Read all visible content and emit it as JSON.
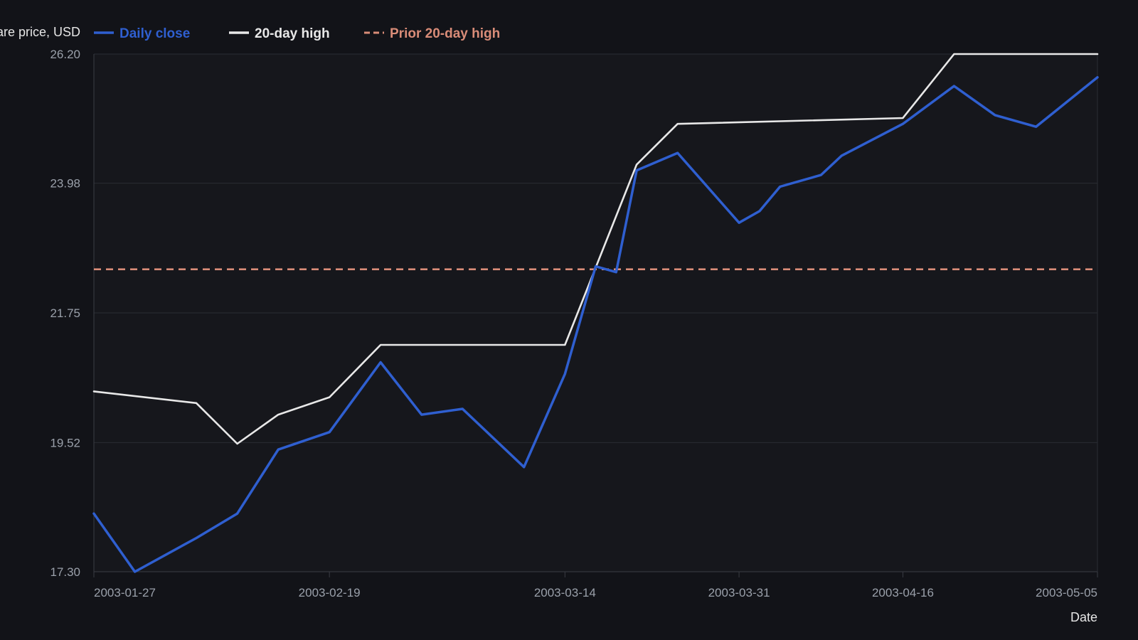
{
  "chart_data": {
    "type": "line",
    "title": "",
    "ylabel": "Share price, USD",
    "xlabel": "Date",
    "ylim": [
      17.3,
      26.2
    ],
    "xlim": [
      "2003-01-27",
      "2003-05-05"
    ],
    "y_ticks": [
      "17.30",
      "19.52",
      "21.75",
      "23.98",
      "26.20"
    ],
    "x_ticks": [
      "2003-01-27",
      "2003-02-19",
      "2003-03-14",
      "2003-03-31",
      "2003-04-16",
      "2003-05-05"
    ],
    "grid": true,
    "legend_position": "top-left",
    "series": [
      {
        "name": "Daily close",
        "style": "solid",
        "color": "#2f5fd0",
        "points": [
          [
            "2003-01-27",
            18.3
          ],
          [
            "2003-01-31",
            17.3
          ],
          [
            "2003-02-06",
            17.88
          ],
          [
            "2003-02-10",
            18.3
          ],
          [
            "2003-02-14",
            19.4
          ],
          [
            "2003-02-19",
            19.7
          ],
          [
            "2003-02-24",
            20.9
          ],
          [
            "2003-02-28",
            20.0
          ],
          [
            "2003-03-04",
            20.1
          ],
          [
            "2003-03-10",
            19.1
          ],
          [
            "2003-03-14",
            20.7
          ],
          [
            "2003-03-17",
            22.55
          ],
          [
            "2003-03-19",
            22.45
          ],
          [
            "2003-03-21",
            24.2
          ],
          [
            "2003-03-25",
            24.5
          ],
          [
            "2003-03-31",
            23.3
          ],
          [
            "2003-04-02",
            23.5
          ],
          [
            "2003-04-04",
            23.92
          ],
          [
            "2003-04-08",
            24.12
          ],
          [
            "2003-04-10",
            24.45
          ],
          [
            "2003-04-16",
            25.0
          ],
          [
            "2003-04-21",
            25.65
          ],
          [
            "2003-04-25",
            25.15
          ],
          [
            "2003-04-29",
            24.95
          ],
          [
            "2003-05-05",
            25.8
          ]
        ]
      },
      {
        "name": "20-day high",
        "style": "solid",
        "color": "#e8e8e8",
        "points": [
          [
            "2003-01-27",
            20.4
          ],
          [
            "2003-02-06",
            20.2
          ],
          [
            "2003-02-10",
            19.5
          ],
          [
            "2003-02-14",
            20.0
          ],
          [
            "2003-02-19",
            20.3
          ],
          [
            "2003-02-24",
            21.2
          ],
          [
            "2003-03-14",
            21.2
          ],
          [
            "2003-03-21",
            24.3
          ],
          [
            "2003-03-25",
            25.0
          ],
          [
            "2003-04-16",
            25.1
          ],
          [
            "2003-04-21",
            26.2
          ],
          [
            "2003-05-05",
            26.2
          ]
        ]
      },
      {
        "name": "Prior 20-day high",
        "style": "dashed",
        "color": "#d98c78",
        "points": [
          [
            "2003-01-27",
            22.5
          ],
          [
            "2003-05-05",
            22.5
          ]
        ]
      }
    ]
  },
  "colors": {
    "background": "#121318",
    "plot_background": "#16171c",
    "grid": "#2a2c33",
    "axis": "#3a3c44"
  }
}
